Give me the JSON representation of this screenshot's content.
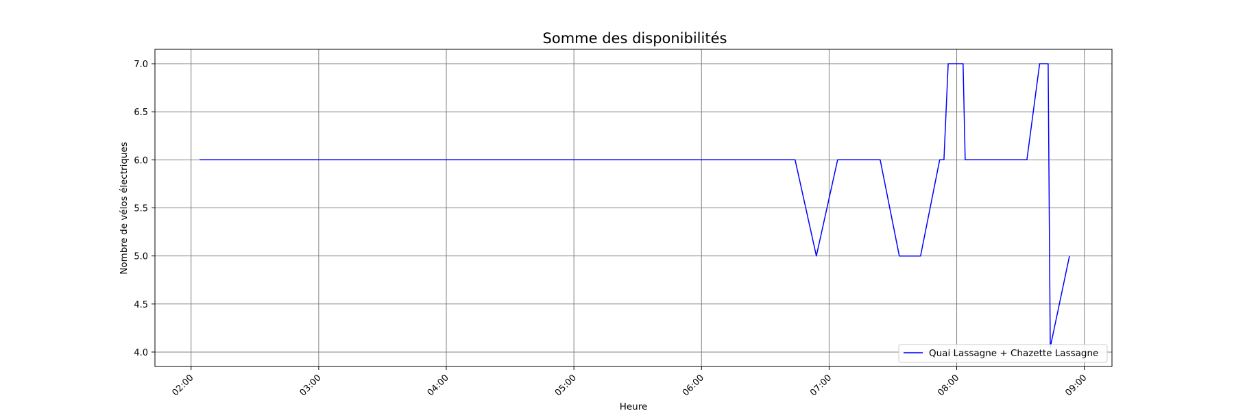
{
  "chart_data": {
    "type": "line",
    "title": "Somme des disponibilités",
    "xlabel": "Heure",
    "ylabel": "Nombre de vélos électriques",
    "x_ticks": [
      "02:00",
      "03:00",
      "04:00",
      "05:00",
      "06:00",
      "07:00",
      "08:00",
      "09:00"
    ],
    "y_ticks": [
      "4.0",
      "4.5",
      "5.0",
      "5.5",
      "6.0",
      "6.5",
      "7.0"
    ],
    "xlim": [
      "01:43",
      "09:13"
    ],
    "ylim": [
      3.85,
      7.15
    ],
    "grid": true,
    "legend_position": "lower-right",
    "series": [
      {
        "name": "Quai Lassagne + Chazette Lassagne",
        "color": "#0000ff",
        "points": [
          [
            "02:04",
            6.0
          ],
          [
            "06:44",
            6.0
          ],
          [
            "06:54",
            5.0
          ],
          [
            "07:04",
            6.0
          ],
          [
            "07:24",
            6.0
          ],
          [
            "07:33",
            5.0
          ],
          [
            "07:43",
            5.0
          ],
          [
            "07:52",
            6.0
          ],
          [
            "07:54",
            6.0
          ],
          [
            "07:56",
            7.0
          ],
          [
            "08:03",
            7.0
          ],
          [
            "08:04",
            6.0
          ],
          [
            "08:33",
            6.0
          ],
          [
            "08:39",
            7.0
          ],
          [
            "08:43",
            7.0
          ],
          [
            "08:44",
            4.05
          ],
          [
            "08:53",
            5.0
          ]
        ]
      }
    ]
  }
}
